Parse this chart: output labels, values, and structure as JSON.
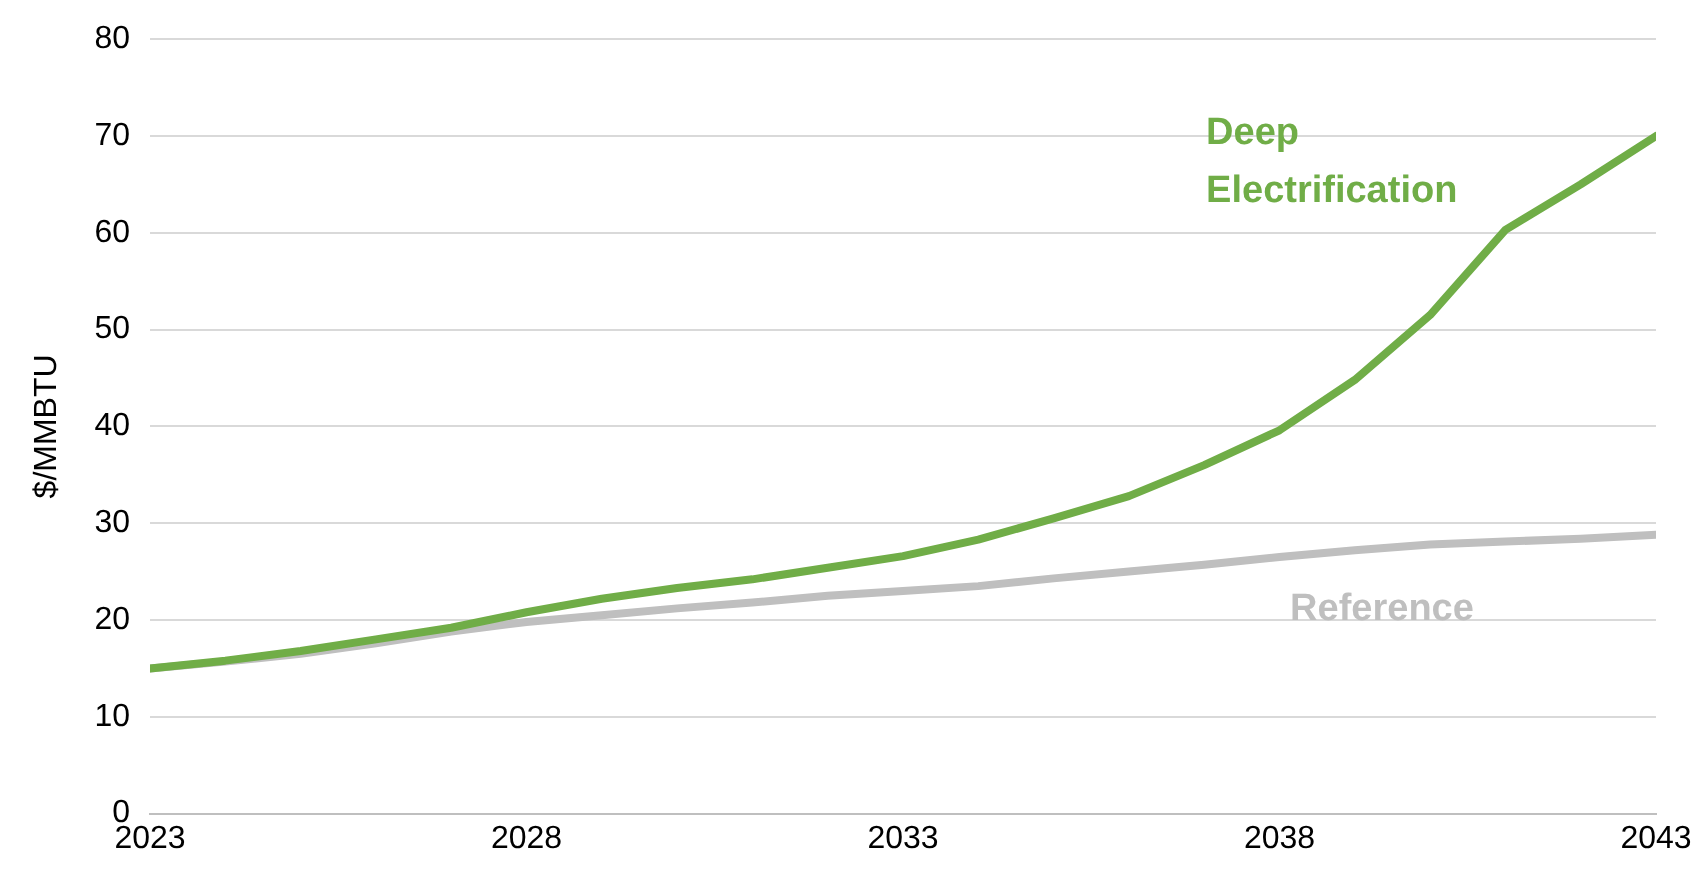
{
  "chart_data": {
    "type": "line",
    "ylabel": "$/MMBTU",
    "x": [
      2023,
      2024,
      2025,
      2026,
      2027,
      2028,
      2029,
      2030,
      2031,
      2032,
      2033,
      2034,
      2035,
      2036,
      2037,
      2038,
      2039,
      2040,
      2041,
      2042,
      2043
    ],
    "series": [
      {
        "name": "Deep Electrification",
        "color": "#70ad47",
        "values": [
          15,
          15.8,
          16.8,
          18,
          19.2,
          20.8,
          22.2,
          23.3,
          24.2,
          25.4,
          26.6,
          28.3,
          30.5,
          32.8,
          36,
          39.6,
          44.8,
          51.5,
          60.3,
          65,
          70
        ]
      },
      {
        "name": "Reference",
        "color": "#bfbfbf",
        "values": [
          15,
          15.7,
          16.5,
          17.6,
          18.8,
          19.8,
          20.5,
          21.2,
          21.8,
          22.5,
          23,
          23.5,
          24.3,
          25,
          25.7,
          26.5,
          27.2,
          27.8,
          28.1,
          28.4,
          28.8
        ]
      }
    ],
    "xlim": [
      2023,
      2043
    ],
    "xticks": [
      2023,
      2028,
      2033,
      2038,
      2043
    ],
    "ylim": [
      0,
      80
    ],
    "yticks": [
      0,
      10,
      20,
      30,
      40,
      50,
      60,
      70,
      80
    ],
    "grid": "y",
    "legend": false,
    "marker": "none",
    "line_style": "solid"
  }
}
